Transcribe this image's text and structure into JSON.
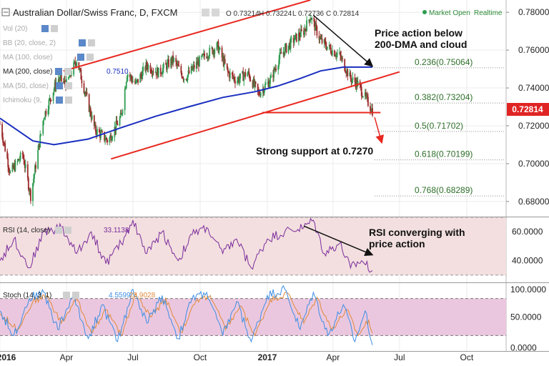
{
  "header": {
    "title": "Australian Dollar/Swiss Franc, D, FXCM",
    "ohlc": [
      "O 0.73214",
      "H 0.73224",
      "L 0.72736",
      "C 0.72814"
    ],
    "status": "Market Open",
    "realtime": "Realtime"
  },
  "indicators": [
    {
      "label": "Vol (20)",
      "value": ""
    },
    {
      "label": "BB (20, close, 2)",
      "value": ""
    },
    {
      "label": "MA (100, close)",
      "value": ""
    },
    {
      "label": "MA (200, close)",
      "value": "0.7510"
    },
    {
      "label": "MA (50, close)",
      "value": ""
    },
    {
      "label": "Ichimoku (9,",
      "value": ""
    }
  ],
  "annotations": {
    "price_action": [
      "Price action below",
      "200-DMA and cloud"
    ],
    "support": "Strong support at 0.7270",
    "rsi": [
      "RSI converging with",
      "price action"
    ]
  },
  "last_price": "0.72814",
  "colors": {
    "candle_up": "#2e9c51",
    "candle_down": "#9c2a2a",
    "ma200": "#1a2fbf",
    "trendline": "#e8281f",
    "rsi_line": "#7a2c9c",
    "rsi_band": "#f3dfdf",
    "stoch_k": "#3d8ee3",
    "stoch_d": "#e08a3a",
    "stoch_band": "#ebc7df",
    "fib_text": "#2e6f2a",
    "price_tag": "#e02424"
  },
  "chart_data": [
    {
      "type": "candlestick",
      "title": "Australian Dollar/Swiss Franc, D, FXCM",
      "y_ticks": [
        "0.78000",
        "0.76000",
        "0.74000",
        "0.72000",
        "0.70000",
        "0.68000"
      ],
      "y_tick_values": [
        0.78,
        0.76,
        0.74,
        0.72,
        0.7,
        0.68
      ],
      "x_tick_labels": [
        "2016",
        "Apr",
        "Jul",
        "Oct",
        "2017",
        "Apr",
        "Jul",
        "Oct"
      ],
      "x_tick_dates": [
        "2016-01-01",
        "2016-04-01",
        "2016-07-01",
        "2016-10-01",
        "2017-01-01",
        "2017-04-01",
        "2017-07-01",
        "2017-10-01"
      ],
      "ylim": [
        0.672,
        0.7865
      ],
      "xlim": [
        "2016-01-01",
        "2017-11-24"
      ],
      "last_price": 0.72814,
      "close_path": [
        [
          "2016-01-01",
          0.721
        ],
        [
          "2016-01-15",
          0.695
        ],
        [
          "2016-02-01",
          0.705
        ],
        [
          "2016-02-12",
          0.683
        ],
        [
          "2016-03-01",
          0.725
        ],
        [
          "2016-03-20",
          0.745
        ],
        [
          "2016-04-01",
          0.742
        ],
        [
          "2016-04-15",
          0.755
        ],
        [
          "2016-04-25",
          0.74
        ],
        [
          "2016-05-10",
          0.718
        ],
        [
          "2016-05-28",
          0.712
        ],
        [
          "2016-06-15",
          0.725
        ],
        [
          "2016-06-23",
          0.748
        ],
        [
          "2016-07-05",
          0.742
        ],
        [
          "2016-07-20",
          0.752
        ],
        [
          "2016-08-05",
          0.748
        ],
        [
          "2016-08-25",
          0.755
        ],
        [
          "2016-09-10",
          0.745
        ],
        [
          "2016-09-25",
          0.752
        ],
        [
          "2016-10-10",
          0.758
        ],
        [
          "2016-10-25",
          0.762
        ],
        [
          "2016-11-08",
          0.748
        ],
        [
          "2016-11-20",
          0.744
        ],
        [
          "2016-12-05",
          0.748
        ],
        [
          "2016-12-20",
          0.737
        ],
        [
          "2017-01-05",
          0.744
        ],
        [
          "2017-01-20",
          0.758
        ],
        [
          "2017-02-05",
          0.765
        ],
        [
          "2017-02-20",
          0.77
        ],
        [
          "2017-03-01",
          0.778
        ],
        [
          "2017-03-15",
          0.765
        ],
        [
          "2017-03-30",
          0.76
        ],
        [
          "2017-04-10",
          0.757
        ],
        [
          "2017-04-25",
          0.745
        ],
        [
          "2017-05-05",
          0.742
        ],
        [
          "2017-05-15",
          0.735
        ],
        [
          "2017-05-25",
          0.7281
        ]
      ],
      "ma200_path": [
        [
          "2016-01-01",
          0.724
        ],
        [
          "2016-02-15",
          0.712
        ],
        [
          "2016-03-15",
          0.71
        ],
        [
          "2016-05-01",
          0.713
        ],
        [
          "2016-06-15",
          0.719
        ],
        [
          "2016-08-01",
          0.725
        ],
        [
          "2016-09-15",
          0.73
        ],
        [
          "2016-11-01",
          0.735
        ],
        [
          "2016-12-15",
          0.738
        ],
        [
          "2017-01-15",
          0.741
        ],
        [
          "2017-02-15",
          0.745
        ],
        [
          "2017-03-15",
          0.749
        ],
        [
          "2017-04-15",
          0.751
        ],
        [
          "2017-05-25",
          0.751
        ]
      ],
      "channel_upper": [
        [
          "2016-03-28",
          0.749
        ],
        [
          "2017-03-01",
          0.7865
        ]
      ],
      "channel_lower": [
        [
          "2016-06-01",
          0.7025
        ],
        [
          "2017-07-01",
          0.7485
        ]
      ],
      "support_line": [
        [
          "2016-12-25",
          0.727
        ],
        [
          "2017-06-05",
          0.727
        ]
      ],
      "down_arrow_line": [
        [
          "2017-03-05",
          0.7785
        ],
        [
          "2017-05-25",
          0.7515
        ]
      ],
      "fib_levels": [
        {
          "label": "0.236(0.75064)",
          "value": 0.75064
        },
        {
          "label": "0.382(0.73204)",
          "value": 0.73204
        },
        {
          "label": "0.5(0.71702)",
          "value": 0.71702
        },
        {
          "label": "0.618(0.70199)",
          "value": 0.70199
        },
        {
          "label": "0.768(0.68289)",
          "value": 0.68289
        }
      ]
    },
    {
      "type": "line",
      "title": "RSI (14, close)",
      "value_label": "33.1138",
      "y_ticks": [
        "60.0000",
        "40.0000"
      ],
      "y_tick_values": [
        60,
        40
      ],
      "ylim": [
        25,
        70
      ],
      "band": [
        30,
        70
      ],
      "path": [
        [
          "2016-01-01",
          40
        ],
        [
          "2016-01-20",
          55
        ],
        [
          "2016-02-10",
          35
        ],
        [
          "2016-03-01",
          60
        ],
        [
          "2016-03-25",
          63
        ],
        [
          "2016-04-15",
          45
        ],
        [
          "2016-05-05",
          60
        ],
        [
          "2016-05-25",
          38
        ],
        [
          "2016-06-15",
          52
        ],
        [
          "2016-07-01",
          68
        ],
        [
          "2016-07-20",
          45
        ],
        [
          "2016-08-10",
          60
        ],
        [
          "2016-09-01",
          40
        ],
        [
          "2016-09-20",
          58
        ],
        [
          "2016-10-10",
          63
        ],
        [
          "2016-11-01",
          45
        ],
        [
          "2016-11-20",
          55
        ],
        [
          "2016-12-10",
          35
        ],
        [
          "2017-01-01",
          55
        ],
        [
          "2017-01-25",
          60
        ],
        [
          "2017-02-20",
          63
        ],
        [
          "2017-03-05",
          68
        ],
        [
          "2017-03-20",
          45
        ],
        [
          "2017-04-10",
          52
        ],
        [
          "2017-04-25",
          35
        ],
        [
          "2017-05-10",
          40
        ],
        [
          "2017-05-25",
          33.11
        ]
      ],
      "trend_arrow": [
        [
          "2017-02-20",
          64
        ],
        [
          "2017-05-25",
          44
        ]
      ]
    },
    {
      "type": "line",
      "title": "Stoch (14, 3, 1)",
      "values": {
        "k": "4.5599",
        "d": "23.9028"
      },
      "y_ticks": [
        "100.0000",
        "50.0000",
        "0.0000"
      ],
      "y_tick_values": [
        100,
        50,
        0
      ],
      "ylim": [
        -5,
        105
      ],
      "band": [
        20,
        80
      ],
      "series": [
        {
          "name": "4.5599",
          "key": "k",
          "values": [
            [
              "2016-01-01",
              60
            ],
            [
              "2016-01-20",
              20
            ],
            [
              "2016-02-10",
              80
            ],
            [
              "2016-03-01",
              90
            ],
            [
              "2016-03-20",
              30
            ],
            [
              "2016-04-10",
              85
            ],
            [
              "2016-05-01",
              15
            ],
            [
              "2016-05-20",
              70
            ],
            [
              "2016-06-10",
              10
            ],
            [
              "2016-07-01",
              95
            ],
            [
              "2016-07-20",
              40
            ],
            [
              "2016-08-10",
              85
            ],
            [
              "2016-09-01",
              15
            ],
            [
              "2016-09-20",
              80
            ],
            [
              "2016-10-10",
              90
            ],
            [
              "2016-11-01",
              20
            ],
            [
              "2016-11-20",
              75
            ],
            [
              "2016-12-10",
              10
            ],
            [
              "2017-01-01",
              85
            ],
            [
              "2017-01-25",
              95
            ],
            [
              "2017-02-15",
              30
            ],
            [
              "2017-03-05",
              90
            ],
            [
              "2017-03-25",
              20
            ],
            [
              "2017-04-15",
              70
            ],
            [
              "2017-05-01",
              10
            ],
            [
              "2017-05-15",
              60
            ],
            [
              "2017-05-25",
              4.56
            ]
          ]
        },
        {
          "name": "23.9028",
          "key": "d",
          "values": [
            [
              "2016-01-01",
              55
            ],
            [
              "2016-01-25",
              30
            ],
            [
              "2016-02-15",
              75
            ],
            [
              "2016-03-05",
              85
            ],
            [
              "2016-03-25",
              40
            ],
            [
              "2016-04-15",
              80
            ],
            [
              "2016-05-05",
              25
            ],
            [
              "2016-05-25",
              62
            ],
            [
              "2016-06-15",
              20
            ],
            [
              "2016-07-05",
              88
            ],
            [
              "2016-07-25",
              50
            ],
            [
              "2016-08-15",
              80
            ],
            [
              "2016-09-05",
              25
            ],
            [
              "2016-09-25",
              75
            ],
            [
              "2016-10-15",
              85
            ],
            [
              "2016-11-05",
              30
            ],
            [
              "2016-11-25",
              68
            ],
            [
              "2016-12-15",
              20
            ],
            [
              "2017-01-05",
              78
            ],
            [
              "2017-01-30",
              88
            ],
            [
              "2017-02-20",
              40
            ],
            [
              "2017-03-10",
              82
            ],
            [
              "2017-03-30",
              30
            ],
            [
              "2017-04-20",
              62
            ],
            [
              "2017-05-05",
              20
            ],
            [
              "2017-05-20",
              45
            ],
            [
              "2017-05-25",
              23.9
            ]
          ]
        }
      ]
    }
  ]
}
